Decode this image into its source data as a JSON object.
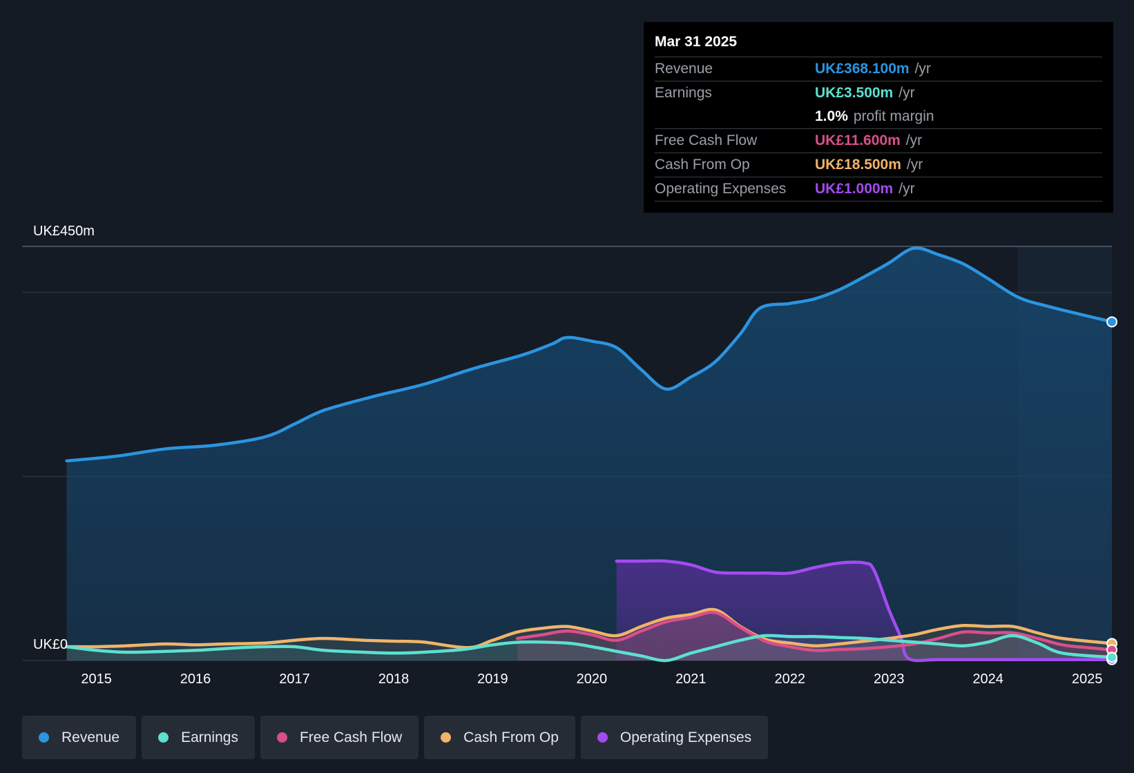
{
  "tooltip": {
    "date": "Mar 31 2025",
    "rows": [
      {
        "label": "Revenue",
        "value": "UK£368.100m",
        "unit": "/yr",
        "color": "#2b95e0"
      },
      {
        "label": "Earnings",
        "value": "UK£3.500m",
        "unit": "/yr",
        "color": "#5ce0d0"
      },
      {
        "label": "",
        "value": "1.0%",
        "unit": "profit margin",
        "color": "#ffffff"
      },
      {
        "label": "Free Cash Flow",
        "value": "UK£11.600m",
        "unit": "/yr",
        "color": "#d94f8a"
      },
      {
        "label": "Cash From Op",
        "value": "UK£18.500m",
        "unit": "/yr",
        "color": "#f0b46a"
      },
      {
        "label": "Operating Expenses",
        "value": "UK£1.000m",
        "unit": "/yr",
        "color": "#a24cf0"
      }
    ]
  },
  "legend": [
    {
      "label": "Revenue",
      "color": "#2b95e0"
    },
    {
      "label": "Earnings",
      "color": "#5ce0d0"
    },
    {
      "label": "Free Cash Flow",
      "color": "#d94f8a"
    },
    {
      "label": "Cash From Op",
      "color": "#f0b46a"
    },
    {
      "label": "Operating Expenses",
      "color": "#a24cf0"
    }
  ],
  "chart_data": {
    "type": "area",
    "title": "",
    "xlabel": "",
    "ylabel": "",
    "ylim": [
      0,
      450
    ],
    "y_tick_labels": [
      "UK£0",
      "UK£450m"
    ],
    "x_tick_labels": [
      "2015",
      "2016",
      "2017",
      "2018",
      "2019",
      "2020",
      "2021",
      "2022",
      "2023",
      "2024",
      "2025"
    ],
    "x_range": [
      2014.25,
      2025.25
    ],
    "forecast_start": 2024.3,
    "series": [
      {
        "name": "Revenue",
        "color": "#2b95e0",
        "x": [
          2014.7,
          2015.2,
          2015.7,
          2016.2,
          2016.7,
          2017.0,
          2017.3,
          2017.8,
          2018.3,
          2018.8,
          2019.3,
          2019.6,
          2019.75,
          2020.0,
          2020.25,
          2020.5,
          2020.75,
          2021.0,
          2021.25,
          2021.5,
          2021.7,
          2022.0,
          2022.25,
          2022.5,
          2022.75,
          2023.0,
          2023.25,
          2023.5,
          2023.75,
          2024.0,
          2024.3,
          2024.6,
          2025.25
        ],
        "y": [
          217,
          222,
          230,
          234,
          243,
          257,
          272,
          287,
          300,
          317,
          332,
          344,
          351,
          347,
          340,
          316,
          295,
          308,
          325,
          355,
          383,
          388,
          393,
          403,
          417,
          432,
          448,
          441,
          431,
          415,
          395,
          385,
          368
        ]
      },
      {
        "name": "Earnings",
        "color": "#5ce0d0",
        "x": [
          2014.7,
          2015.0,
          2015.3,
          2015.7,
          2016.0,
          2016.3,
          2016.7,
          2017.0,
          2017.3,
          2017.7,
          2018.0,
          2018.3,
          2018.7,
          2019.0,
          2019.3,
          2019.75,
          2020.0,
          2020.25,
          2020.5,
          2020.75,
          2021.0,
          2021.25,
          2021.5,
          2021.75,
          2022.0,
          2022.25,
          2022.5,
          2022.75,
          2023.0,
          2023.25,
          2023.5,
          2023.75,
          2024.0,
          2024.25,
          2024.5,
          2024.75,
          2025.25
        ],
        "y": [
          15,
          11,
          9,
          10,
          11,
          13,
          15,
          15,
          11,
          9,
          8,
          9,
          12,
          17,
          20,
          19,
          15,
          10,
          5,
          0,
          8,
          15,
          22,
          27,
          26,
          26,
          25,
          24,
          22,
          20,
          18,
          16,
          20,
          27,
          19,
          8,
          3.5
        ]
      },
      {
        "name": "Free Cash Flow",
        "color": "#d94f8a",
        "x": [
          2019.25,
          2019.5,
          2019.75,
          2020.0,
          2020.25,
          2020.5,
          2020.75,
          2021.0,
          2021.25,
          2021.5,
          2021.75,
          2022.0,
          2022.25,
          2022.5,
          2022.75,
          2023.0,
          2023.25,
          2023.5,
          2023.75,
          2024.0,
          2024.25,
          2024.5,
          2024.75,
          2025.0,
          2025.25
        ],
        "y": [
          24,
          28,
          32,
          28,
          22,
          32,
          42,
          47,
          52,
          36,
          21,
          15,
          11,
          12,
          13,
          15,
          18,
          24,
          31,
          30,
          30,
          24,
          17,
          14,
          11.6
        ]
      },
      {
        "name": "Cash From Op",
        "color": "#f0b46a",
        "x": [
          2014.7,
          2015.0,
          2015.3,
          2015.7,
          2016.0,
          2016.3,
          2016.7,
          2017.0,
          2017.3,
          2017.7,
          2018.0,
          2018.3,
          2018.75,
          2019.0,
          2019.25,
          2019.5,
          2019.75,
          2020.0,
          2020.25,
          2020.5,
          2020.75,
          2021.0,
          2021.25,
          2021.5,
          2021.75,
          2022.0,
          2022.25,
          2022.5,
          2022.75,
          2023.0,
          2023.25,
          2023.5,
          2023.75,
          2024.0,
          2024.25,
          2024.5,
          2024.75,
          2025.25
        ],
        "y": [
          15,
          15,
          16,
          18,
          17,
          18,
          19,
          22,
          24,
          22,
          21,
          20,
          14,
          22,
          31,
          35,
          37,
          32,
          27,
          37,
          46,
          50,
          55,
          37,
          23,
          19,
          16,
          18,
          21,
          24,
          28,
          34,
          38,
          37,
          37,
          30,
          24,
          18.5
        ]
      },
      {
        "name": "Operating Expenses",
        "color": "#a24cf0",
        "x": [
          2020.25,
          2020.5,
          2020.75,
          2021.0,
          2021.25,
          2021.5,
          2021.75,
          2022.0,
          2022.25,
          2022.5,
          2022.75,
          2022.85,
          2023.0,
          2023.12,
          2023.2,
          2023.5,
          2024.0,
          2024.5,
          2025.25
        ],
        "y": [
          108,
          108,
          108,
          104,
          96,
          95,
          95,
          95,
          101,
          106,
          106,
          98,
          55,
          25,
          2,
          1,
          1,
          1,
          1
        ]
      }
    ]
  }
}
